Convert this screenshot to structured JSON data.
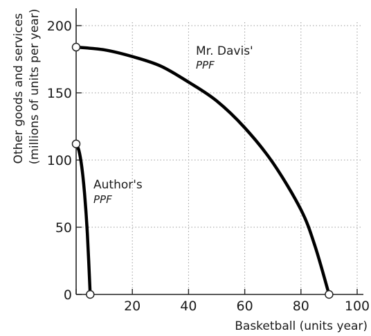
{
  "chart_data": {
    "type": "line",
    "xlabel": "Basketball (units year)",
    "ylabel_lines": [
      "Other goods and services",
      "(millions of units per year)"
    ],
    "xlim": [
      0,
      100
    ],
    "ylim": [
      0,
      200
    ],
    "x_ticks": [
      0,
      20,
      40,
      60,
      80,
      100
    ],
    "x_tick_labels": [
      "20",
      "40",
      "60",
      "80",
      "100"
    ],
    "y_ticks": [
      0,
      50,
      100,
      150,
      200
    ],
    "y_tick_labels": [
      "0",
      "50",
      "100",
      "150",
      "200"
    ],
    "grid": true,
    "series": [
      {
        "name": "Mr. Davis'",
        "name_sub": "PPF",
        "x": [
          0,
          10,
          20,
          30,
          40,
          50,
          60,
          70,
          80,
          85,
          90
        ],
        "y": [
          184,
          182,
          177,
          170,
          158,
          144,
          124,
          98,
          63,
          36,
          0
        ]
      },
      {
        "name": "Author's",
        "name_sub": "PPF",
        "x": [
          0,
          1,
          2,
          3,
          4,
          5
        ],
        "y": [
          112,
          107,
          95,
          75,
          45,
          0
        ]
      }
    ]
  }
}
